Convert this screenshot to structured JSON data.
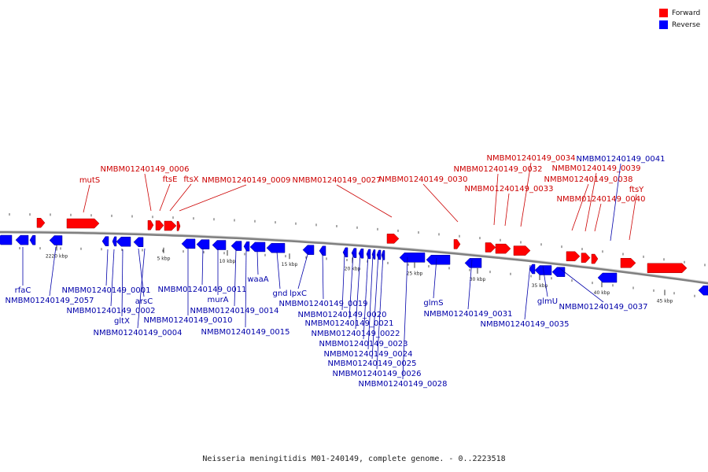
{
  "legend": {
    "forward_label": "Forward",
    "reverse_label": "Reverse",
    "forward_color": "#ff0000",
    "reverse_color": "#0000ff"
  },
  "caption": "Neisseria meningitidis M01-240149, complete genome. - 0..2223518",
  "colors": {
    "forward_label": "#cc0000",
    "reverse_label": "#0000aa",
    "backbone": "#808080"
  },
  "scale_labels": [
    "2220 kbp",
    "5 kbp",
    "10 kbp",
    "15 kbp",
    "20 kbp",
    "25 kbp",
    "30 kbp",
    "35 kbp",
    "40 kbp",
    "45 kbp"
  ],
  "forward_genes": [
    "mutS",
    "NMBM01240149_0006",
    "ftsE",
    "ftsX",
    "NMBM01240149_0009",
    "NMBM01240149_0027",
    "NMBM01240149_0030",
    "NMBM01240149_0032",
    "NMBM01240149_0033",
    "NMBM01240149_0034",
    "NMBM01240149_0038",
    "NMBM01240149_0039",
    "NMBM01240149_0040",
    "ftsY"
  ],
  "reverse_genes": [
    "rfaC",
    "NMBM01240149_2057",
    "NMBM01240149_0001",
    "NMBM01240149_0002",
    "arsC",
    "gltX",
    "NMBM01240149_0004",
    "NMBM01240149_0010",
    "NMBM01240149_0011",
    "murA",
    "NMBM01240149_0014",
    "NMBM01240149_0015",
    "waaA",
    "gnd",
    "lpxC",
    "NMBM01240149_0019",
    "NMBM01240149_0020",
    "NMBM01240149_0021",
    "NMBM01240149_0022",
    "NMBM01240149_0023",
    "NMBM01240149_0024",
    "NMBM01240149_0025",
    "NMBM01240149_0026",
    "NMBM01240149_0028",
    "glmS",
    "NMBM01240149_0031",
    "NMBM01240149_0035",
    "glmU",
    "NMBM01240149_0037",
    "NMBM01240149_0041"
  ]
}
